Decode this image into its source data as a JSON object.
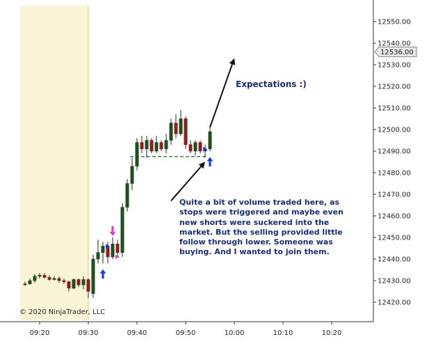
{
  "chart_data": {
    "type": "candlestick",
    "instrument_note": "",
    "ylim": [
      12415,
      12555
    ],
    "y_ticks": [
      "12550.00",
      "12540.00",
      "12530.00",
      "12520.00",
      "12510.00",
      "12500.00",
      "12490.00",
      "12480.00",
      "12470.00",
      "12460.00",
      "12450.00",
      "12440.00",
      "12430.00",
      "12420.00"
    ],
    "x_ticks": [
      "09:20",
      "09:30",
      "09:40",
      "09:50",
      "10:00",
      "10:10",
      "10:20"
    ],
    "price_marker": "12536.00",
    "copyright": "© 2020 NinjaTrader, LLC",
    "session_shading": {
      "from": "09:16",
      "to": "09:30",
      "color": "#fbf5d7"
    },
    "colors": {
      "up": "#1f4e1f",
      "down": "#8a1f1f",
      "wick": "#222222",
      "support_line": "#2e8b2e",
      "arrow_up": "#1a3fe6",
      "arrow_down": "#e23cc8",
      "annotation": "#1a2f73",
      "marker_bg": "#e6e6e6"
    },
    "candles": [
      {
        "t": "09:17",
        "o": 12428.5,
        "h": 12429.5,
        "l": 12427.5,
        "c": 12428.5
      },
      {
        "t": "09:18",
        "o": 12428.5,
        "h": 12431,
        "l": 12428,
        "c": 12430
      },
      {
        "t": "09:19",
        "o": 12430,
        "h": 12433,
        "l": 12429,
        "c": 12432
      },
      {
        "t": "09:20",
        "o": 12432,
        "h": 12433.5,
        "l": 12431,
        "c": 12432.5
      },
      {
        "t": "09:21",
        "o": 12432.5,
        "h": 12433.5,
        "l": 12431,
        "c": 12431.5
      },
      {
        "t": "09:22",
        "o": 12431.5,
        "h": 12432.5,
        "l": 12430,
        "c": 12430.5
      },
      {
        "t": "09:23",
        "o": 12430.5,
        "h": 12432,
        "l": 12430,
        "c": 12431
      },
      {
        "t": "09:24",
        "o": 12431,
        "h": 12432,
        "l": 12429,
        "c": 12430
      },
      {
        "t": "09:25",
        "o": 12430,
        "h": 12431,
        "l": 12428.5,
        "c": 12429.5
      },
      {
        "t": "09:26",
        "o": 12429.5,
        "h": 12430,
        "l": 12425,
        "c": 12426.5
      },
      {
        "t": "09:27",
        "o": 12426.5,
        "h": 12431,
        "l": 12426,
        "c": 12430.5
      },
      {
        "t": "09:28",
        "o": 12430.5,
        "h": 12431,
        "l": 12427,
        "c": 12428
      },
      {
        "t": "09:29",
        "o": 12428,
        "h": 12432,
        "l": 12426,
        "c": 12430.5
      },
      {
        "t": "09:30",
        "o": 12430.5,
        "h": 12431,
        "l": 12422,
        "c": 12425
      },
      {
        "t": "09:31",
        "o": 12424,
        "h": 12442,
        "l": 12422,
        "c": 12440
      },
      {
        "t": "09:32",
        "o": 12440,
        "h": 12449,
        "l": 12438,
        "c": 12443
      },
      {
        "t": "09:33",
        "o": 12443,
        "h": 12448,
        "l": 12438,
        "c": 12446
      },
      {
        "t": "09:34",
        "o": 12446,
        "h": 12448,
        "l": 12438,
        "c": 12441
      },
      {
        "t": "09:35",
        "o": 12441,
        "h": 12450,
        "l": 12440,
        "c": 12447
      },
      {
        "t": "09:36",
        "o": 12447,
        "h": 12449,
        "l": 12441,
        "c": 12443
      },
      {
        "t": "09:37",
        "o": 12443,
        "h": 12466,
        "l": 12441,
        "c": 12464
      },
      {
        "t": "09:38",
        "o": 12464,
        "h": 12477,
        "l": 12462,
        "c": 12475
      },
      {
        "t": "09:39",
        "o": 12475,
        "h": 12487,
        "l": 12472,
        "c": 12483
      },
      {
        "t": "09:40",
        "o": 12483,
        "h": 12496,
        "l": 12481,
        "c": 12494
      },
      {
        "t": "09:41",
        "o": 12494,
        "h": 12497,
        "l": 12489,
        "c": 12491
      },
      {
        "t": "09:42",
        "o": 12491,
        "h": 12497,
        "l": 12487,
        "c": 12495
      },
      {
        "t": "09:43",
        "o": 12495,
        "h": 12496,
        "l": 12489,
        "c": 12490
      },
      {
        "t": "09:44",
        "o": 12490,
        "h": 12497,
        "l": 12489,
        "c": 12494
      },
      {
        "t": "09:45",
        "o": 12494,
        "h": 12495,
        "l": 12490,
        "c": 12491
      },
      {
        "t": "09:46",
        "o": 12491,
        "h": 12498,
        "l": 12489,
        "c": 12495
      },
      {
        "t": "09:47",
        "o": 12495,
        "h": 12505,
        "l": 12493,
        "c": 12503
      },
      {
        "t": "09:48",
        "o": 12503,
        "h": 12507,
        "l": 12496,
        "c": 12498
      },
      {
        "t": "09:49",
        "o": 12498,
        "h": 12509,
        "l": 12497,
        "c": 12505
      },
      {
        "t": "09:50",
        "o": 12505,
        "h": 12506,
        "l": 12491,
        "c": 12493
      },
      {
        "t": "09:51",
        "o": 12493,
        "h": 12495,
        "l": 12489,
        "c": 12490
      },
      {
        "t": "09:52",
        "o": 12490,
        "h": 12495,
        "l": 12488,
        "c": 12494
      },
      {
        "t": "09:53",
        "o": 12494,
        "h": 12495,
        "l": 12489,
        "c": 12490
      },
      {
        "t": "09:54",
        "o": 12490,
        "h": 12493,
        "l": 12487,
        "c": 12491
      },
      {
        "t": "09:55",
        "o": 12491,
        "h": 12502,
        "l": 12490,
        "c": 12499
      }
    ],
    "support_level": {
      "y": 12487.5,
      "from": "09:39",
      "to": "09:54"
    },
    "up_arrows": [
      {
        "t": "09:33",
        "y": 12433
      },
      {
        "t": "09:55",
        "y": 12485
      }
    ],
    "down_arrows": [
      {
        "t": "09:35",
        "y": 12453
      }
    ],
    "small_markers": [
      {
        "t": "09:34",
        "y": 12446,
        "color": "#1a3fe6"
      },
      {
        "t": "09:36",
        "y": 12441,
        "color": "#e23cc8"
      },
      {
        "t": "09:54",
        "y": 12491,
        "color": "#1a3fe6"
      }
    ],
    "annotations": [
      {
        "id": "expect",
        "text": "Expectations  :)"
      },
      {
        "id": "volume",
        "lines": [
          "Quite a bit of volume traded here, as",
          "stops were triggered and maybe even",
          "new shorts were suckered into the",
          "market. But the selling provided little",
          "follow through lower. Someone was",
          "buying. And I wanted to join them."
        ]
      }
    ],
    "pointer_arrows": [
      {
        "from_t": "09:55",
        "from_y": 12501,
        "to_t": "10:00",
        "to_y": 12533
      },
      {
        "from_t": "09:47",
        "from_y": 12467,
        "to_t": "09:54",
        "to_y": 12485
      }
    ]
  }
}
